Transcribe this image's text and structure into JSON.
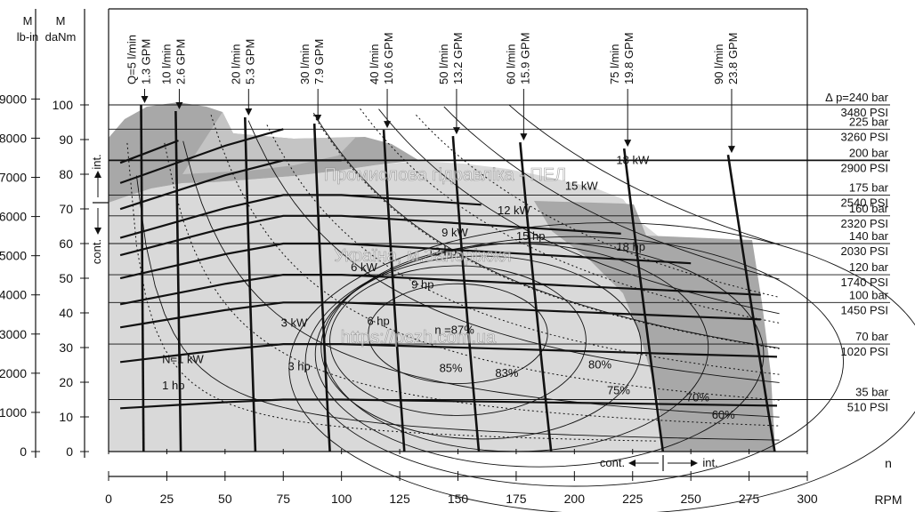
{
  "chart_data": {
    "type": "line",
    "axis_titles": {
      "left1": [
        "M",
        "lb-in"
      ],
      "left2": [
        "M",
        "daNm"
      ],
      "bottom_n": "n",
      "bottom_rpm": "RPM"
    },
    "x_ticks": [
      "0",
      "25",
      "50",
      "75",
      "100",
      "125",
      "150",
      "175",
      "200",
      "225",
      "250",
      "275",
      "300"
    ],
    "y_daNm_ticks": [
      "0",
      "10",
      "20",
      "30",
      "40",
      "50",
      "60",
      "70",
      "80",
      "90",
      "100"
    ],
    "y_lbin_ticks": [
      "0",
      "1000",
      "2000",
      "3000",
      "4000",
      "5000",
      "6000",
      "7000",
      "8000",
      "9000"
    ],
    "xlim": [
      0,
      300
    ],
    "ylim_daNm": [
      0,
      100
    ],
    "zones": {
      "int": "int.",
      "cont": "cont.",
      "int_x": "int.",
      "cont_x": "cont."
    },
    "flows": [
      {
        "lmin": "Q=5 l/min",
        "gpm": "1.3 GPM",
        "rpm": 15
      },
      {
        "lmin": "10 l/min",
        "gpm": "2.6 GPM",
        "rpm": 31
      },
      {
        "lmin": "20 l/min",
        "gpm": "5.3 GPM",
        "rpm": 63
      },
      {
        "lmin": "30 l/min",
        "gpm": "7.9 GPM",
        "rpm": 95
      },
      {
        "lmin": "40 l/min",
        "gpm": "10.6 GPM",
        "rpm": 127
      },
      {
        "lmin": "50 l/min",
        "gpm": "13.2 GPM",
        "rpm": 159
      },
      {
        "lmin": "60 l/min",
        "gpm": "15.9 GPM",
        "rpm": 190
      },
      {
        "lmin": "75 l/min",
        "gpm": "19.8 GPM",
        "rpm": 238
      },
      {
        "lmin": "90 l/min",
        "gpm": "23.8 GPM",
        "rpm": 286
      }
    ],
    "pressures": [
      {
        "bar": "∆ p=240 bar",
        "psi": "3480 PSI",
        "torque": 100
      },
      {
        "bar": "225 bar",
        "psi": "3260 PSI",
        "torque": 93
      },
      {
        "bar": "200 bar",
        "psi": "2900 PSI",
        "torque": 84
      },
      {
        "bar": "175 bar",
        "psi": "2540 PSI",
        "torque": 74
      },
      {
        "bar": "160 bar",
        "psi": "2320 PSI",
        "torque": 68
      },
      {
        "bar": "140 bar",
        "psi": "2030 PSI",
        "torque": 60
      },
      {
        "bar": "120 bar",
        "psi": "1740 PSI",
        "torque": 51
      },
      {
        "bar": "100 bar",
        "psi": "1450 PSI",
        "torque": 43
      },
      {
        "bar": "70 bar",
        "psi": "1020 PSI",
        "torque": 31
      },
      {
        "bar": "35 bar",
        "psi": "510 PSI",
        "torque": 15
      }
    ],
    "power_labels": [
      {
        "text": "N=1 kW",
        "x": 23,
        "y": 25.5
      },
      {
        "text": "1 hp",
        "x": 23,
        "y": 18
      },
      {
        "text": "3 kW",
        "x": 74,
        "y": 36
      },
      {
        "text": "3 hp",
        "x": 77,
        "y": 23.5
      },
      {
        "text": "6 kW",
        "x": 104,
        "y": 52
      },
      {
        "text": "6 hp",
        "x": 111,
        "y": 36.5
      },
      {
        "text": "9 kW",
        "x": 143,
        "y": 62
      },
      {
        "text": "9 hp",
        "x": 130,
        "y": 47
      },
      {
        "text": "12 hp",
        "x": 137,
        "y": 56.5
      },
      {
        "text": "12 kW",
        "x": 167,
        "y": 68.5
      },
      {
        "text": "15 hp",
        "x": 175,
        "y": 61
      },
      {
        "text": "15 kW",
        "x": 196,
        "y": 75.5
      },
      {
        "text": "18 kW",
        "x": 218,
        "y": 83
      },
      {
        "text": "18 hp",
        "x": 218,
        "y": 58
      }
    ],
    "eff_labels": [
      {
        "text": "η =87%",
        "x": 140,
        "y": 34
      },
      {
        "text": "85%",
        "x": 142,
        "y": 23
      },
      {
        "text": "83%",
        "x": 166,
        "y": 21.5
      },
      {
        "text": "80%",
        "x": 206,
        "y": 24
      },
      {
        "text": "75%",
        "x": 214,
        "y": 16.5
      },
      {
        "text": "70%",
        "x": 248,
        "y": 14.5
      },
      {
        "text": "60%",
        "x": 259,
        "y": 9.5
      }
    ],
    "watermarks": [
      "Промислова гідравліка - ПЕЛ",
      "Україна, м.Запоріжжя",
      "https://pezh.com.ua"
    ],
    "colors": {
      "dark": "#9f9f9f",
      "mid": "#bdbdbd",
      "light": "#d9d9d9",
      "line": "#111111"
    }
  }
}
